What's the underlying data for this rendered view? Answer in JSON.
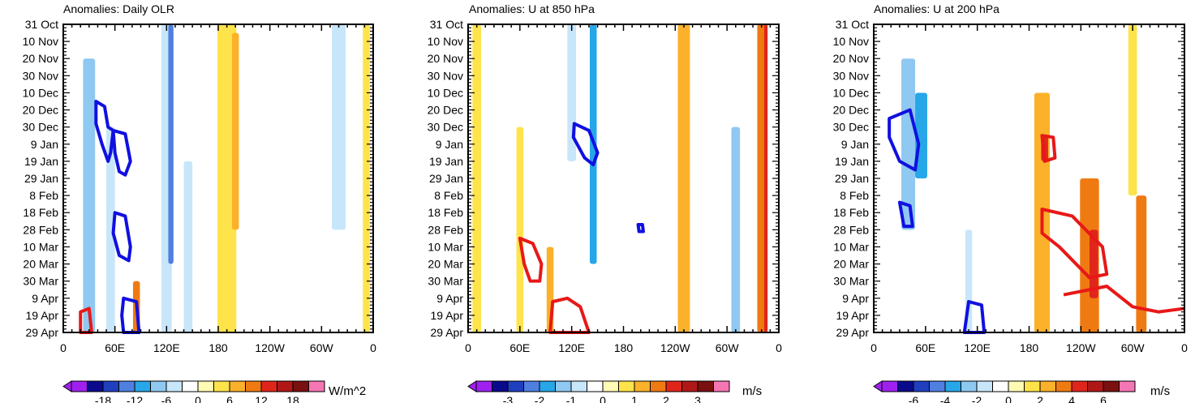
{
  "chart_data": [
    {
      "type": "heatmap",
      "title": "Anomalies: Daily OLR",
      "units": "W/m^2",
      "x_ticks": [
        "0",
        "60E",
        "120E",
        "180",
        "120W",
        "60W",
        "0"
      ],
      "y_ticks": [
        "31 Oct",
        "10 Nov",
        "20 Nov",
        "30 Nov",
        "10 Dec",
        "20 Dec",
        "30 Dec",
        "9 Jan",
        "19 Jan",
        "29 Jan",
        "8 Feb",
        "18 Feb",
        "28 Feb",
        "10 Mar",
        "20 Mar",
        "30 Mar",
        "9 Apr",
        "19 Apr",
        "29 Apr"
      ],
      "colorbar_labels": [
        "-18",
        "-12",
        "-6",
        "0",
        "6",
        "12",
        "18"
      ],
      "colorbar_label_bins": [
        2,
        4,
        6,
        8,
        10,
        12,
        14
      ],
      "bands": [
        {
          "lon": 30,
          "width": 14,
          "day_start": 20,
          "day_end": 180,
          "bin": 5
        },
        {
          "lon": 55,
          "width": 10,
          "day_start": 60,
          "day_end": 180,
          "bin": 6
        },
        {
          "lon": 120,
          "width": 12,
          "day_start": 0,
          "day_end": 180,
          "bin": 6
        },
        {
          "lon": 125,
          "width": 6,
          "day_start": 0,
          "day_end": 140,
          "bin": 3
        },
        {
          "lon": 145,
          "width": 10,
          "day_start": 80,
          "day_end": 180,
          "bin": 6
        },
        {
          "lon": 85,
          "width": 8,
          "day_start": 150,
          "day_end": 180,
          "bin": 11
        },
        {
          "lon": 190,
          "width": 22,
          "day_start": 0,
          "day_end": 180,
          "bin": 9
        },
        {
          "lon": 200,
          "width": 8,
          "day_start": 5,
          "day_end": 120,
          "bin": 10
        },
        {
          "lon": 250,
          "width": 14,
          "day_start": 0,
          "day_end": 180,
          "bin": 7
        },
        {
          "lon": 320,
          "width": 16,
          "day_start": 0,
          "day_end": 120,
          "bin": 6
        },
        {
          "lon": 352,
          "width": 8,
          "day_start": 0,
          "day_end": 180,
          "bin": 9
        }
      ],
      "contours": [
        {
          "color": "blue",
          "points": [
            [
              38,
              45
            ],
            [
              48,
              48
            ],
            [
              52,
              60
            ],
            [
              58,
              62
            ],
            [
              55,
              75
            ],
            [
              52,
              80
            ],
            [
              45,
              70
            ],
            [
              38,
              58
            ]
          ]
        },
        {
          "color": "blue",
          "points": [
            [
              58,
              62
            ],
            [
              72,
              64
            ],
            [
              78,
              80
            ],
            [
              72,
              88
            ],
            [
              65,
              86
            ],
            [
              60,
              75
            ]
          ]
        },
        {
          "color": "blue",
          "points": [
            [
              60,
              110
            ],
            [
              72,
              112
            ],
            [
              78,
              130
            ],
            [
              76,
              138
            ],
            [
              65,
              135
            ],
            [
              58,
              122
            ]
          ]
        },
        {
          "color": "blue",
          "points": [
            [
              70,
              160
            ],
            [
              85,
              162
            ],
            [
              88,
              180
            ],
            [
              70,
              180
            ],
            [
              68,
              170
            ]
          ]
        },
        {
          "color": "red",
          "points": [
            [
              20,
              168
            ],
            [
              30,
              166
            ],
            [
              33,
              180
            ],
            [
              20,
              180
            ]
          ]
        }
      ]
    },
    {
      "type": "heatmap",
      "title": "Anomalies: U at 850 hPa",
      "units": "m/s",
      "x_ticks": [
        "0",
        "60E",
        "120E",
        "180",
        "120W",
        "60W",
        "0"
      ],
      "y_ticks": [
        "31 Oct",
        "10 Nov",
        "20 Nov",
        "30 Nov",
        "10 Dec",
        "20 Dec",
        "30 Dec",
        "9 Jan",
        "19 Jan",
        "29 Jan",
        "8 Feb",
        "18 Feb",
        "28 Feb",
        "10 Mar",
        "20 Mar",
        "30 Mar",
        "9 Apr",
        "19 Apr",
        "29 Apr"
      ],
      "colorbar_labels": [
        "-3",
        "-2",
        "-1",
        "0",
        "1",
        "2",
        "3"
      ],
      "colorbar_label_bins": [
        2,
        4,
        6,
        8,
        10,
        12,
        14
      ],
      "bands": [
        {
          "lon": 10,
          "width": 10,
          "day_start": 0,
          "day_end": 180,
          "bin": 9
        },
        {
          "lon": 60,
          "width": 8,
          "day_start": 60,
          "day_end": 180,
          "bin": 9
        },
        {
          "lon": 95,
          "width": 8,
          "day_start": 130,
          "day_end": 180,
          "bin": 10
        },
        {
          "lon": 120,
          "width": 10,
          "day_start": 0,
          "day_end": 80,
          "bin": 6
        },
        {
          "lon": 145,
          "width": 8,
          "day_start": 0,
          "day_end": 140,
          "bin": 4
        },
        {
          "lon": 215,
          "width": 12,
          "day_start": 0,
          "day_end": 180,
          "bin": 7
        },
        {
          "lon": 250,
          "width": 14,
          "day_start": 0,
          "day_end": 180,
          "bin": 10
        },
        {
          "lon": 310,
          "width": 10,
          "day_start": 60,
          "day_end": 180,
          "bin": 5
        },
        {
          "lon": 340,
          "width": 10,
          "day_start": 0,
          "day_end": 180,
          "bin": 11
        },
        {
          "lon": 345,
          "width": 4,
          "day_start": 0,
          "day_end": 180,
          "bin": 12
        }
      ],
      "contours": [
        {
          "color": "blue",
          "points": [
            [
              123,
              58
            ],
            [
              140,
              62
            ],
            [
              150,
              75
            ],
            [
              145,
              82
            ],
            [
              135,
              78
            ],
            [
              122,
              66
            ]
          ]
        },
        {
          "color": "blue",
          "points": [
            [
              197,
              117
            ],
            [
              202,
              117
            ],
            [
              203,
              121
            ],
            [
              198,
              121
            ]
          ]
        },
        {
          "color": "red",
          "points": [
            [
              60,
              125
            ],
            [
              75,
              128
            ],
            [
              85,
              140
            ],
            [
              83,
              150
            ],
            [
              72,
              150
            ],
            [
              65,
              140
            ]
          ]
        },
        {
          "color": "red",
          "points": [
            [
              98,
              162
            ],
            [
              115,
              160
            ],
            [
              130,
              165
            ],
            [
              140,
              180
            ],
            [
              95,
              180
            ]
          ]
        }
      ]
    },
    {
      "type": "heatmap",
      "title": "Anomalies: U at 200 hPa",
      "units": "m/s",
      "x_ticks": [
        "0",
        "60E",
        "120E",
        "180",
        "120W",
        "60W",
        "0"
      ],
      "y_ticks": [
        "31 Oct",
        "10 Nov",
        "20 Nov",
        "30 Nov",
        "10 Dec",
        "20 Dec",
        "30 Dec",
        "9 Jan",
        "19 Jan",
        "29 Jan",
        "8 Feb",
        "18 Feb",
        "28 Feb",
        "10 Mar",
        "20 Mar",
        "30 Mar",
        "9 Apr",
        "19 Apr",
        "29 Apr"
      ],
      "colorbar_labels": [
        "-6",
        "-4",
        "-2",
        "0",
        "2",
        "4",
        "6"
      ],
      "colorbar_label_bins": [
        2,
        4,
        6,
        8,
        10,
        12,
        14
      ],
      "bands": [
        {
          "lon": 40,
          "width": 16,
          "day_start": 20,
          "day_end": 120,
          "bin": 5
        },
        {
          "lon": 55,
          "width": 14,
          "day_start": 40,
          "day_end": 90,
          "bin": 4
        },
        {
          "lon": 110,
          "width": 8,
          "day_start": 120,
          "day_end": 180,
          "bin": 6
        },
        {
          "lon": 195,
          "width": 18,
          "day_start": 40,
          "day_end": 180,
          "bin": 10
        },
        {
          "lon": 198,
          "width": 8,
          "day_start": 65,
          "day_end": 80,
          "bin": 12
        },
        {
          "lon": 250,
          "width": 22,
          "day_start": 90,
          "day_end": 180,
          "bin": 11
        },
        {
          "lon": 255,
          "width": 10,
          "day_start": 120,
          "day_end": 160,
          "bin": 12
        },
        {
          "lon": 310,
          "width": 12,
          "day_start": 100,
          "day_end": 180,
          "bin": 11
        },
        {
          "lon": 300,
          "width": 10,
          "day_start": 0,
          "day_end": 100,
          "bin": 9
        }
      ],
      "contours": [
        {
          "color": "blue",
          "points": [
            [
              18,
              55
            ],
            [
              42,
              50
            ],
            [
              52,
              70
            ],
            [
              48,
              85
            ],
            [
              30,
              80
            ],
            [
              18,
              66
            ]
          ]
        },
        {
          "color": "blue",
          "points": [
            [
              30,
              104
            ],
            [
              42,
              106
            ],
            [
              45,
              118
            ],
            [
              35,
              118
            ]
          ]
        },
        {
          "color": "blue",
          "points": [
            [
              110,
              162
            ],
            [
              125,
              164
            ],
            [
              128,
              180
            ],
            [
              105,
              180
            ]
          ]
        },
        {
          "color": "red",
          "points": [
            [
              195,
              65
            ],
            [
              208,
              66
            ],
            [
              210,
              78
            ],
            [
              198,
              80
            ]
          ]
        },
        {
          "color": "red",
          "points": [
            [
              195,
              108
            ],
            [
              230,
              112
            ],
            [
              265,
              130
            ],
            [
              270,
              146
            ],
            [
              250,
              148
            ],
            [
              215,
              130
            ],
            [
              195,
              122
            ]
          ]
        },
        {
          "color": "red",
          "points": [
            [
              220,
              158
            ],
            [
              270,
              153
            ],
            [
              300,
              165
            ],
            [
              330,
              168
            ],
            [
              360,
              166
            ]
          ]
        }
      ]
    }
  ]
}
